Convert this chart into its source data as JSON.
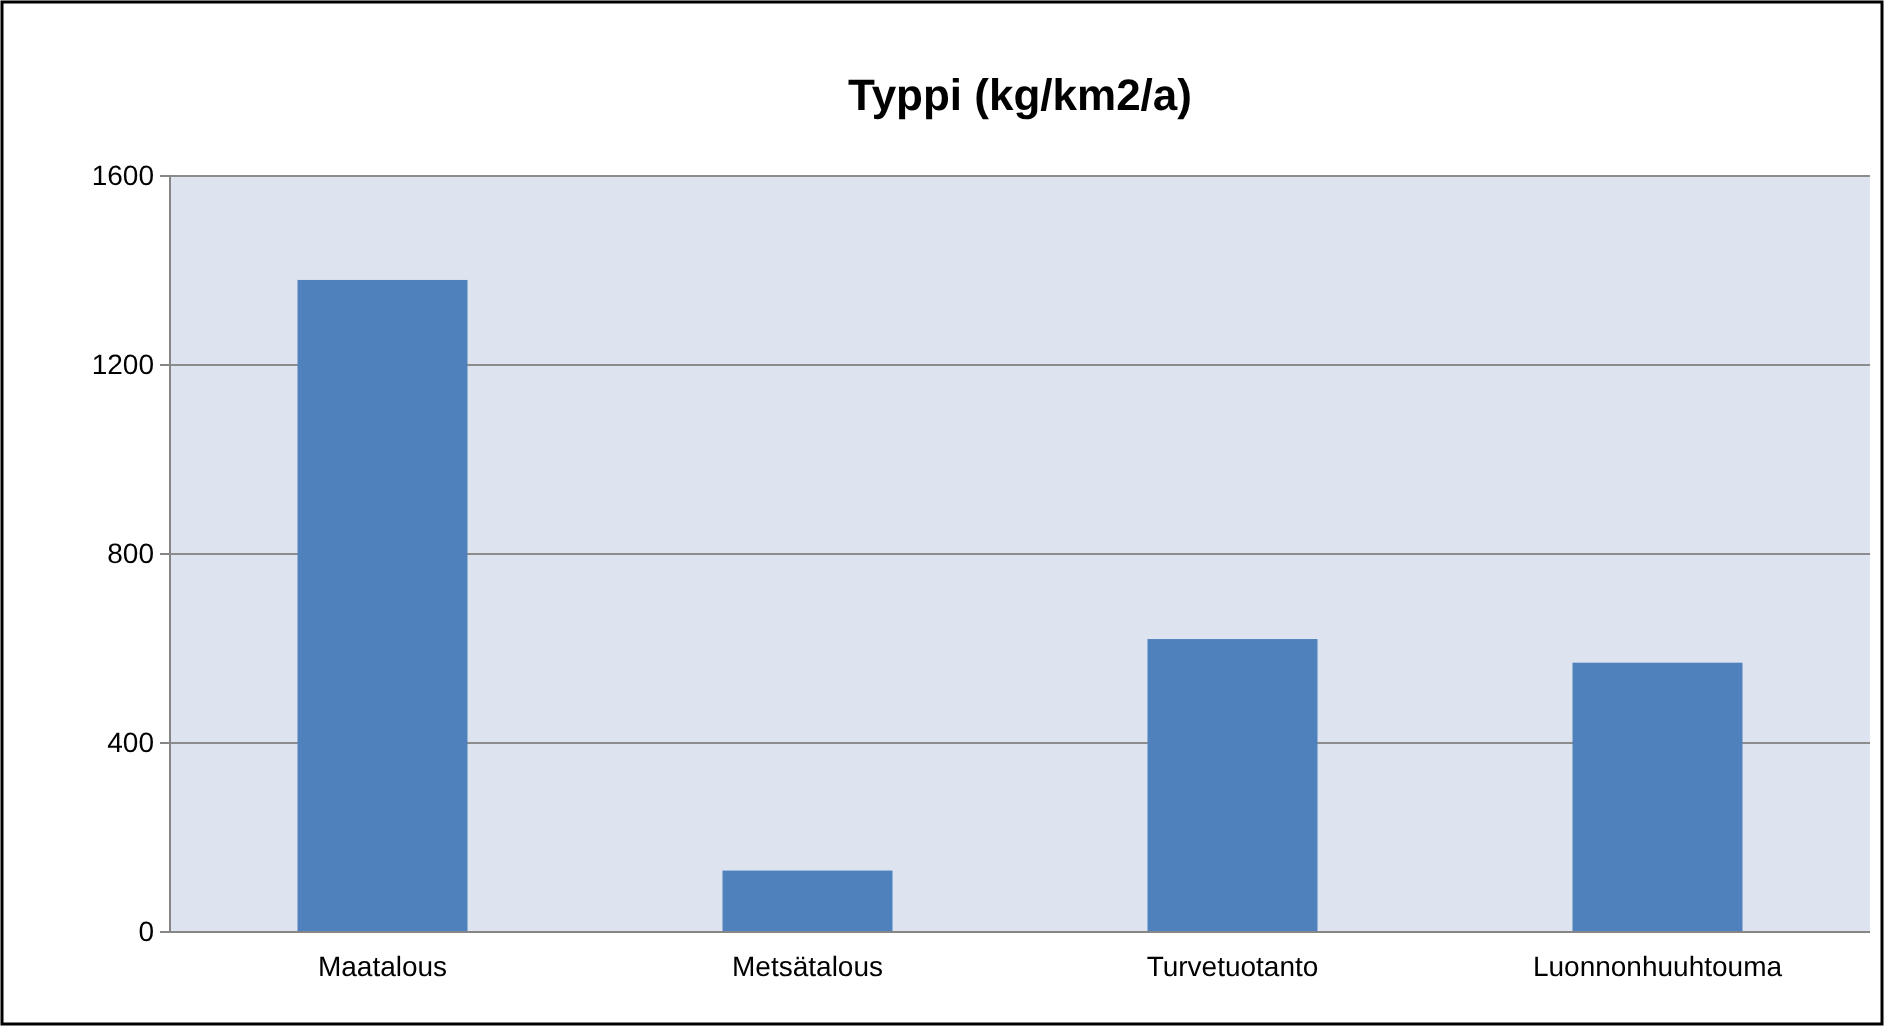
{
  "chart_data": {
    "type": "bar",
    "title": "Typpi (kg/km2/a)",
    "categories": [
      "Maatalous",
      "Metsätalous",
      "Turvetuotanto",
      "Luonnonhuuhtouma"
    ],
    "values": [
      1380,
      130,
      620,
      570
    ],
    "color": "#4f81bd",
    "ylim": [
      0,
      1600
    ],
    "yticks": [
      0,
      400,
      800,
      1200,
      1600
    ],
    "grid": "y"
  }
}
